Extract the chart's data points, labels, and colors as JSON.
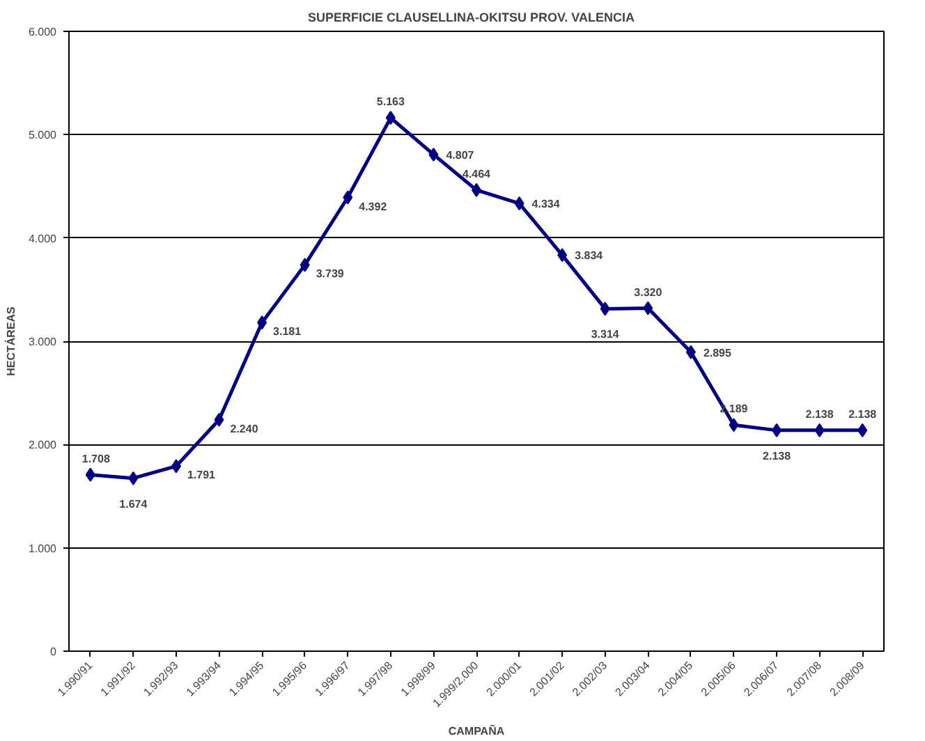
{
  "chart_data": {
    "type": "line",
    "title": "SUPERFICIE CLAUSELLINA-OKITSU    PROV. VALENCIA",
    "xlabel": "CAMPAÑA",
    "ylabel": "HECTÁREAS",
    "categories": [
      "1.990/91",
      "1.991/92",
      "1.992/93",
      "1.993/94",
      "1.994/95",
      "1.995/96",
      "1.996/97",
      "1.997/98",
      "1.998/99",
      "1.999/2.000",
      "2.000/01",
      "2.001/02",
      "2.002/03",
      "2.003/04",
      "2.004/05",
      "2.005/06",
      "2.006/07",
      "2.007/08",
      "2.008/09"
    ],
    "series": [
      {
        "color": "#000080",
        "values": [
          1708,
          1674,
          1791,
          2240,
          3181,
          3739,
          4392,
          5163,
          4807,
          4464,
          4334,
          3834,
          3314,
          3320,
          2895,
          2189,
          2138,
          2138,
          2138
        ],
        "value_labels": [
          "1.708",
          "1.674",
          "1.791",
          "2.240",
          "3.181",
          "3.739",
          "4.392",
          "5.163",
          "4.807",
          "4.464",
          "4.334",
          "3.834",
          "3.314",
          "3.320",
          "2.895",
          "2.189",
          "2.138",
          "2.138",
          "2.138"
        ]
      }
    ],
    "ylim": [
      0,
      6000
    ],
    "yticks": [
      {
        "value": 0,
        "label": "0"
      },
      {
        "value": 1000,
        "label": "1.000"
      },
      {
        "value": 2000,
        "label": "2.000"
      },
      {
        "value": 3000,
        "label": "3.000"
      },
      {
        "value": 4000,
        "label": "4.000"
      },
      {
        "value": 5000,
        "label": "5.000"
      },
      {
        "value": 6000,
        "label": "6.000"
      }
    ],
    "grid": "y",
    "marker": "diamond",
    "line_style": "solid"
  }
}
